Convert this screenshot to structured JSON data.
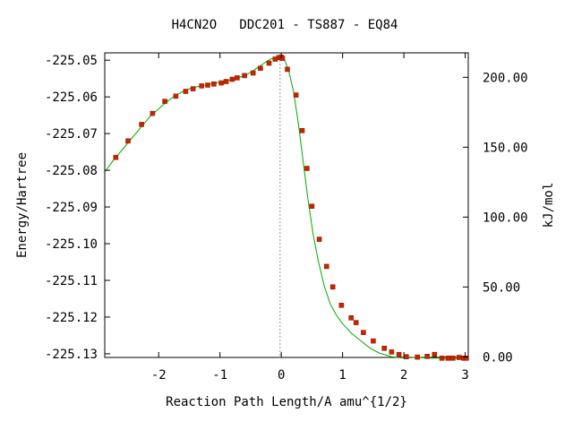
{
  "chart_data": {
    "type": "line",
    "title": "H4CN2O   DDC201 - TS887 - EQ84",
    "xlabel": "Reaction Path Length/A amu^{1/2}",
    "ylabel": "Energy/Hartree",
    "y2label": "kJ/mol",
    "xlim": [
      -2.88,
      3.05
    ],
    "ylim": [
      -225.131,
      -225.048
    ],
    "y2lim": [
      -0.4,
      217.5
    ],
    "x_ticks": [
      "-2",
      "-1",
      "0",
      "1",
      "2",
      "3"
    ],
    "x_tick_values": [
      -2,
      -1,
      0,
      1,
      2,
      3
    ],
    "y_ticks": [
      "-225.05",
      "-225.06",
      "-225.07",
      "-225.08",
      "-225.09",
      "-225.10",
      "-225.11",
      "-225.12",
      "-225.13"
    ],
    "y_tick_values": [
      -225.05,
      -225.06,
      -225.07,
      -225.08,
      -225.09,
      -225.1,
      -225.11,
      -225.12,
      -225.13
    ],
    "y2_ticks": [
      "200.00",
      "150.00",
      "100.00",
      "50.00",
      "0.00"
    ],
    "y2_tick_values": [
      200,
      150,
      100,
      50,
      0
    ],
    "ts_marker_x": -0.02,
    "grid": false,
    "colors": {
      "curve": "#00aa00",
      "points": "#cc2200",
      "point_edge": "#8b2500",
      "ts_line": "#999999"
    },
    "curve": {
      "x": [
        -2.88,
        -2.75,
        -2.55,
        -2.35,
        -2.15,
        -1.95,
        -1.78,
        -1.6,
        -1.45,
        -1.3,
        -1.15,
        -1.0,
        -0.85,
        -0.7,
        -0.55,
        -0.4,
        -0.28,
        -0.18,
        -0.08,
        0.0,
        0.06,
        0.12,
        0.2,
        0.28,
        0.36,
        0.44,
        0.52,
        0.6,
        0.7,
        0.8,
        0.9,
        1.0,
        1.15,
        1.3,
        1.45,
        1.6,
        1.8,
        2.0,
        2.2,
        2.4,
        2.6,
        2.8,
        3.05
      ],
      "y": [
        -225.0805,
        -225.0775,
        -225.0735,
        -225.0695,
        -225.0655,
        -225.0625,
        -225.0602,
        -225.0585,
        -225.0575,
        -225.057,
        -225.0565,
        -225.056,
        -225.0555,
        -225.0548,
        -225.0538,
        -225.0522,
        -225.0508,
        -225.0497,
        -225.0492,
        -225.0493,
        -225.0502,
        -225.0528,
        -225.0585,
        -225.0675,
        -225.078,
        -225.0885,
        -225.0975,
        -225.1045,
        -225.1115,
        -225.1165,
        -225.1195,
        -225.1218,
        -225.1245,
        -225.1265,
        -225.1285,
        -225.1298,
        -225.1308,
        -225.1312,
        -225.131,
        -225.1312,
        -225.1312,
        -225.1312,
        -225.1312
      ]
    },
    "points": {
      "x": [
        -2.7,
        -2.5,
        -2.28,
        -2.1,
        -1.9,
        -1.72,
        -1.56,
        -1.44,
        -1.3,
        -1.2,
        -1.1,
        -0.98,
        -0.9,
        -0.8,
        -0.72,
        -0.6,
        -0.46,
        -0.34,
        -0.2,
        -0.1,
        -0.04,
        0.0,
        0.02,
        0.1,
        0.24,
        0.34,
        0.42,
        0.5,
        0.62,
        0.74,
        0.84,
        0.98,
        1.14,
        1.22,
        1.34,
        1.5,
        1.68,
        1.8,
        1.92,
        2.04,
        2.22,
        2.38,
        2.5,
        2.62,
        2.72,
        2.8,
        2.9,
        2.98,
        3.02
      ],
      "y": [
        -225.0765,
        -225.072,
        -225.0675,
        -225.0645,
        -225.0612,
        -225.0598,
        -225.0585,
        -225.0578,
        -225.057,
        -225.0568,
        -225.0565,
        -225.0562,
        -225.0558,
        -225.0552,
        -225.0548,
        -225.0542,
        -225.0535,
        -225.0522,
        -225.0508,
        -225.0497,
        -225.0493,
        -225.0492,
        -225.0495,
        -225.0525,
        -225.0595,
        -225.0692,
        -225.0795,
        -225.0898,
        -225.0988,
        -225.1062,
        -225.1118,
        -225.1168,
        -225.1202,
        -225.1215,
        -225.1242,
        -225.1265,
        -225.1285,
        -225.1295,
        -225.1302,
        -225.1308,
        -225.1309,
        -225.1307,
        -225.1302,
        -225.1312,
        -225.1312,
        -225.1312,
        -225.131,
        -225.1312,
        -225.1312
      ]
    }
  }
}
